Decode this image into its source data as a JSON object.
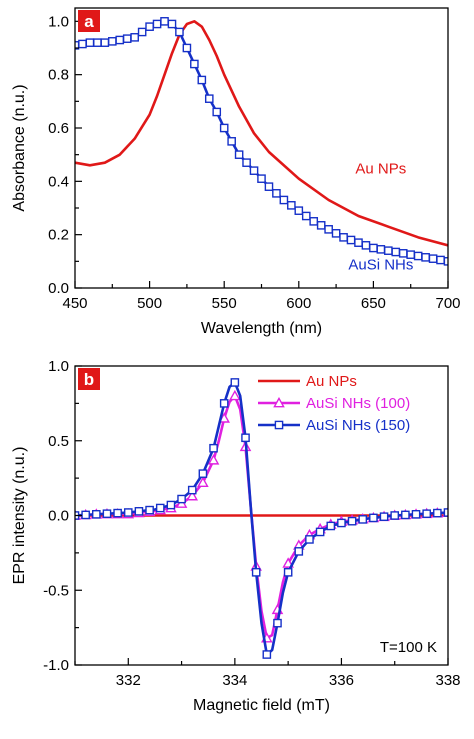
{
  "chart_data": [
    {
      "type": "line",
      "panel_label": "a",
      "xlabel": "Wavelength (nm)",
      "ylabel": "Absorbance (n.u.)",
      "xlim": [
        450,
        700
      ],
      "ylim": [
        0.0,
        1.05
      ],
      "xticks": [
        450,
        500,
        550,
        600,
        650,
        700
      ],
      "yticks": [
        0.0,
        0.2,
        0.4,
        0.6,
        0.8,
        1.0
      ],
      "ytick_labels": [
        "0.0",
        "0.2",
        "0.4",
        "0.6",
        "0.8",
        "1.0"
      ],
      "grid": false,
      "legend": "inline labels near curves",
      "series": [
        {
          "name": "Au NPs",
          "color": "#e01818",
          "marker": "none",
          "label_anchor": [
            655,
            0.43
          ],
          "x": [
            450,
            460,
            470,
            480,
            490,
            500,
            505,
            510,
            515,
            520,
            525,
            530,
            535,
            540,
            545,
            550,
            560,
            570,
            580,
            600,
            620,
            640,
            660,
            680,
            700
          ],
          "y": [
            0.47,
            0.46,
            0.47,
            0.5,
            0.56,
            0.65,
            0.72,
            0.8,
            0.88,
            0.95,
            0.99,
            1.0,
            0.98,
            0.93,
            0.87,
            0.8,
            0.68,
            0.58,
            0.51,
            0.41,
            0.33,
            0.27,
            0.23,
            0.19,
            0.16
          ]
        },
        {
          "name": "AuSi NHs",
          "color": "#1530c8",
          "marker": "square",
          "marker_every_x": 5,
          "label_anchor": [
            655,
            0.07
          ],
          "x": [
            450,
            460,
            470,
            480,
            490,
            495,
            500,
            505,
            510,
            515,
            520,
            525,
            530,
            535,
            540,
            545,
            550,
            555,
            560,
            570,
            580,
            590,
            600,
            610,
            620,
            630,
            640,
            650,
            660,
            670,
            680,
            690,
            700
          ],
          "y": [
            0.91,
            0.92,
            0.92,
            0.93,
            0.94,
            0.96,
            0.98,
            0.99,
            1.0,
            0.99,
            0.96,
            0.9,
            0.84,
            0.78,
            0.71,
            0.66,
            0.6,
            0.55,
            0.5,
            0.44,
            0.38,
            0.33,
            0.29,
            0.25,
            0.22,
            0.19,
            0.17,
            0.15,
            0.14,
            0.13,
            0.12,
            0.11,
            0.1
          ]
        }
      ]
    },
    {
      "type": "line",
      "panel_label": "b",
      "xlabel": "Magnetic field (mT)",
      "ylabel": "EPR intensity (n.u.)",
      "xlim": [
        331,
        338
      ],
      "ylim": [
        -1.0,
        1.0
      ],
      "xticks": [
        332,
        334,
        336,
        338
      ],
      "yticks": [
        -1.0,
        -0.5,
        0.0,
        0.5,
        1.0
      ],
      "ytick_labels": [
        "-1.0",
        "-0.5",
        "0.0",
        "0.5",
        "1.0"
      ],
      "grid": false,
      "legend": "top-right",
      "annotation": "T=100 K",
      "series": [
        {
          "name": "Au NPs",
          "color": "#e01818",
          "marker": "none",
          "x": [
            331.0,
            332.0,
            333.0,
            334.0,
            335.0,
            336.0,
            337.0,
            338.0
          ],
          "y": [
            0.0,
            0.0,
            0.0,
            0.0,
            0.0,
            0.0,
            0.0,
            0.0
          ]
        },
        {
          "name": "AuSi NHs (100)",
          "color": "#e020e0",
          "marker": "triangle",
          "marker_every_x": 0.2,
          "x": [
            331.0,
            331.5,
            332.0,
            332.5,
            332.8,
            333.0,
            333.2,
            333.4,
            333.6,
            333.7,
            333.8,
            333.9,
            334.0,
            334.1,
            334.2,
            334.3,
            334.4,
            334.5,
            334.6,
            334.7,
            334.8,
            334.9,
            335.0,
            335.2,
            335.4,
            335.6,
            335.8,
            336.0,
            336.5,
            337.0,
            337.5,
            338.0
          ],
          "y": [
            0.0,
            0.01,
            0.01,
            0.03,
            0.05,
            0.08,
            0.13,
            0.22,
            0.37,
            0.5,
            0.65,
            0.76,
            0.8,
            0.71,
            0.46,
            0.05,
            -0.34,
            -0.64,
            -0.82,
            -0.8,
            -0.63,
            -0.45,
            -0.32,
            -0.2,
            -0.13,
            -0.09,
            -0.06,
            -0.04,
            -0.02,
            0.0,
            0.01,
            0.02
          ]
        },
        {
          "name": "AuSi NHs (150)",
          "color": "#1530c8",
          "marker": "square",
          "marker_every_x": 0.2,
          "x": [
            331.0,
            331.5,
            332.0,
            332.5,
            332.8,
            333.0,
            333.2,
            333.4,
            333.6,
            333.7,
            333.8,
            333.9,
            334.0,
            334.1,
            334.2,
            334.3,
            334.4,
            334.5,
            334.6,
            334.7,
            334.8,
            334.9,
            335.0,
            335.2,
            335.4,
            335.6,
            335.8,
            336.0,
            336.5,
            337.0,
            337.5,
            338.0
          ],
          "y": [
            0.0,
            0.01,
            0.02,
            0.04,
            0.07,
            0.11,
            0.17,
            0.28,
            0.45,
            0.6,
            0.75,
            0.86,
            0.89,
            0.8,
            0.52,
            0.05,
            -0.38,
            -0.72,
            -0.93,
            -0.9,
            -0.72,
            -0.52,
            -0.38,
            -0.24,
            -0.16,
            -0.11,
            -0.07,
            -0.05,
            -0.02,
            0.0,
            0.01,
            0.02
          ]
        }
      ]
    }
  ]
}
